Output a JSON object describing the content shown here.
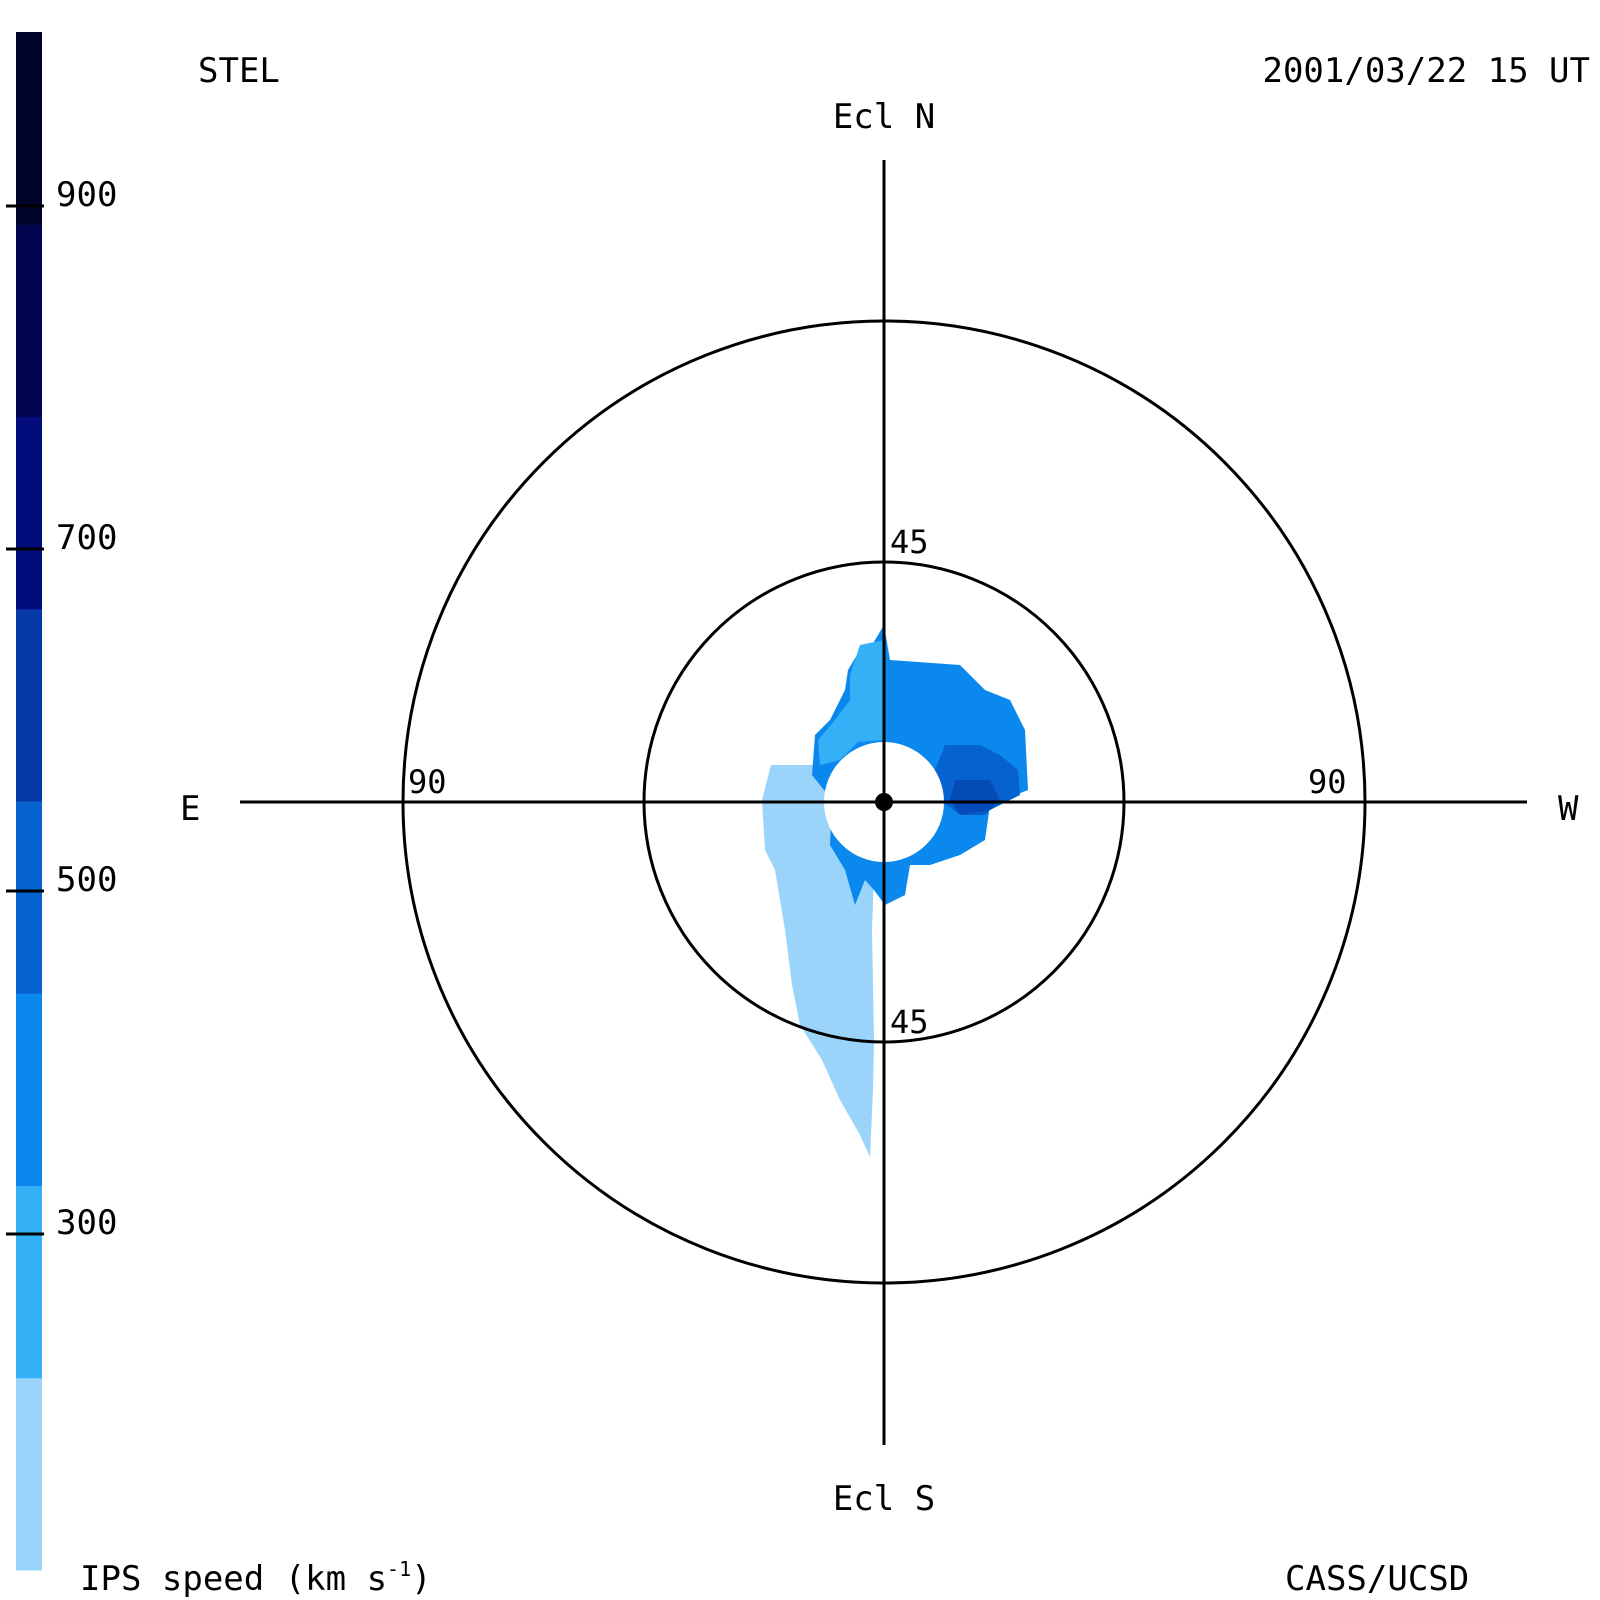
{
  "header": {
    "left": "STEL",
    "right": "2001/03/22 15 UT"
  },
  "footer": {
    "left_label": "IPS speed (km s",
    "left_sup": "-1",
    "left_close": ")",
    "right": "CASS/UCSD"
  },
  "directions": {
    "north": "Ecl N",
    "south": "Ecl S",
    "east": "E",
    "west": "W"
  },
  "ring_labels": {
    "inner_top": "45",
    "inner_bottom": "45",
    "outer_left": "90",
    "outer_right": "90"
  },
  "colorbar": {
    "ticks": [
      "300",
      "500",
      "700",
      "900"
    ],
    "colors": [
      "#9ad4fb",
      "#35b0f6",
      "#0a88ee",
      "#0562cf",
      "#0638a6",
      "#020c7a",
      "#02044f",
      "#010227"
    ]
  },
  "chart_data": {
    "type": "heatmap",
    "title": "STEL",
    "subtitle": "2001/03/22 15 UT",
    "colorbar_label": "IPS speed (km s-1)",
    "colorbar_ticks": [
      300,
      500,
      700,
      900
    ],
    "colorbar_range": [
      100,
      1000
    ],
    "elongation_rings_deg": [
      45,
      90
    ],
    "regions": [
      {
        "location": "south-east of Sun",
        "speed_band": "100-200",
        "color": "#9ad4fb"
      },
      {
        "location": "north-east of Sun",
        "speed_band": "300-400",
        "color": "#0a88ee"
      },
      {
        "location": "north-west of Sun",
        "speed_band": "400-500",
        "color": "#0562cf"
      },
      {
        "location": "west of Sun near ecliptic",
        "speed_band": "500-600",
        "color": "#0638a6"
      }
    ]
  }
}
